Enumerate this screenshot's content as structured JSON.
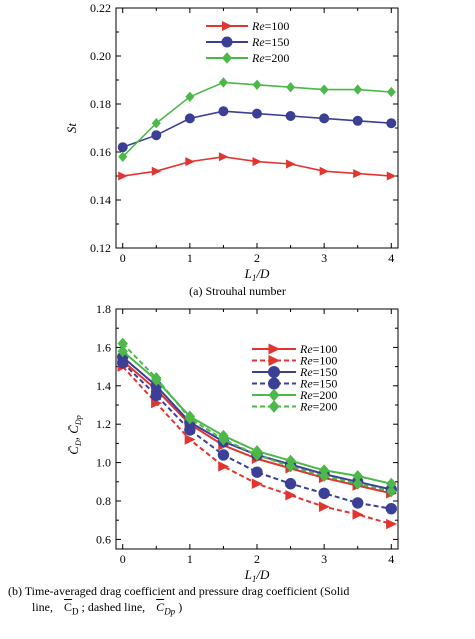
{
  "chart_data": [
    {
      "type": "line",
      "xlabel": "L1/D",
      "ylabel": "St",
      "xlim": [
        -0.1,
        4.1
      ],
      "ylim": [
        0.12,
        0.22
      ],
      "xticks": [
        "0",
        "1",
        "2",
        "3",
        "4"
      ],
      "yticks": [
        "0.12",
        "0.14",
        "0.16",
        "0.18",
        "0.20",
        "0.22"
      ],
      "legend_position": "top-right",
      "series": [
        {
          "name": "Re=100",
          "marker": "triangle-right",
          "line": "solid",
          "color": "#e0362f",
          "x": [
            0,
            0.5,
            1.0,
            1.5,
            2.0,
            2.5,
            3.0,
            3.5,
            4.0
          ],
          "values": [
            0.15,
            0.152,
            0.156,
            0.158,
            0.156,
            0.155,
            0.152,
            0.151,
            0.15
          ]
        },
        {
          "name": "Re=150",
          "marker": "circle",
          "line": "solid",
          "color": "#3b3f95",
          "x": [
            0,
            0.5,
            1.0,
            1.5,
            2.0,
            2.5,
            3.0,
            3.5,
            4.0
          ],
          "values": [
            0.162,
            0.167,
            0.174,
            0.177,
            0.176,
            0.175,
            0.174,
            0.173,
            0.172
          ]
        },
        {
          "name": "Re=200",
          "marker": "diamond",
          "line": "solid",
          "color": "#4cb848",
          "x": [
            0,
            0.5,
            1.0,
            1.5,
            2.0,
            2.5,
            3.0,
            3.5,
            4.0
          ],
          "values": [
            0.158,
            0.172,
            0.183,
            0.189,
            0.188,
            0.187,
            0.186,
            0.186,
            0.185
          ]
        }
      ]
    },
    {
      "type": "line",
      "xlabel": "L1/D",
      "ylabel": "C̄D, C̄Dp",
      "xlim": [
        -0.1,
        4.1
      ],
      "ylim": [
        0.55,
        1.8
      ],
      "xticks": [
        "0",
        "1",
        "2",
        "3",
        "4"
      ],
      "yticks": [
        "0.6",
        "0.8",
        "1.0",
        "1.2",
        "1.4",
        "1.6",
        "1.8"
      ],
      "legend_position": "top-right",
      "series": [
        {
          "name": "Re=100",
          "marker": "triangle-right",
          "line": "solid",
          "color": "#e0362f",
          "x": [
            0,
            0.5,
            1.0,
            1.5,
            2.0,
            2.5,
            3.0,
            3.5,
            4.0
          ],
          "values": [
            1.53,
            1.38,
            1.2,
            1.09,
            1.02,
            0.97,
            0.92,
            0.88,
            0.84
          ]
        },
        {
          "name": "Re=100",
          "marker": "triangle-right",
          "line": "dashed",
          "color": "#e0362f",
          "x": [
            0,
            0.5,
            1.0,
            1.5,
            2.0,
            2.5,
            3.0,
            3.5,
            4.0
          ],
          "values": [
            1.5,
            1.31,
            1.12,
            0.98,
            0.89,
            0.83,
            0.77,
            0.73,
            0.68
          ]
        },
        {
          "name": "Re=150",
          "marker": "circle",
          "line": "solid",
          "color": "#3b3f95",
          "x": [
            0,
            0.5,
            1.0,
            1.5,
            2.0,
            2.5,
            3.0,
            3.5,
            4.0
          ],
          "values": [
            1.55,
            1.4,
            1.21,
            1.11,
            1.04,
            0.99,
            0.94,
            0.9,
            0.86
          ]
        },
        {
          "name": "Re=150",
          "marker": "circle",
          "line": "dashed",
          "color": "#3b3f95",
          "x": [
            0,
            0.5,
            1.0,
            1.5,
            2.0,
            2.5,
            3.0,
            3.5,
            4.0
          ],
          "values": [
            1.52,
            1.35,
            1.17,
            1.04,
            0.95,
            0.89,
            0.84,
            0.79,
            0.76
          ]
        },
        {
          "name": "Re=200",
          "marker": "diamond",
          "line": "solid",
          "color": "#4cb848",
          "x": [
            0,
            0.5,
            1.0,
            1.5,
            2.0,
            2.5,
            3.0,
            3.5,
            4.0
          ],
          "values": [
            1.58,
            1.43,
            1.24,
            1.14,
            1.06,
            1.01,
            0.96,
            0.93,
            0.89
          ]
        },
        {
          "name": "Re=200",
          "marker": "diamond",
          "line": "dashed",
          "color": "#4cb848",
          "x": [
            0,
            0.5,
            1.0,
            1.5,
            2.0,
            2.5,
            3.0,
            3.5,
            4.0
          ],
          "values": [
            1.62,
            1.44,
            1.23,
            1.12,
            1.04,
            0.98,
            0.93,
            0.89,
            0.85
          ]
        }
      ]
    }
  ],
  "captions": {
    "a": "(a) Strouhal number",
    "b_line1": "(b) Time-averaged drag coefficient and pressure drag coefficient (Solid",
    "b_line2_a": "line,",
    "b_line2_cd": "C",
    "b_line2_cd_sub": "D",
    "b_line2_b": "; dashed line,",
    "b_line2_cdp": "C",
    "b_line2_cdp_sub": "Dp",
    "b_line2_c": ")"
  }
}
